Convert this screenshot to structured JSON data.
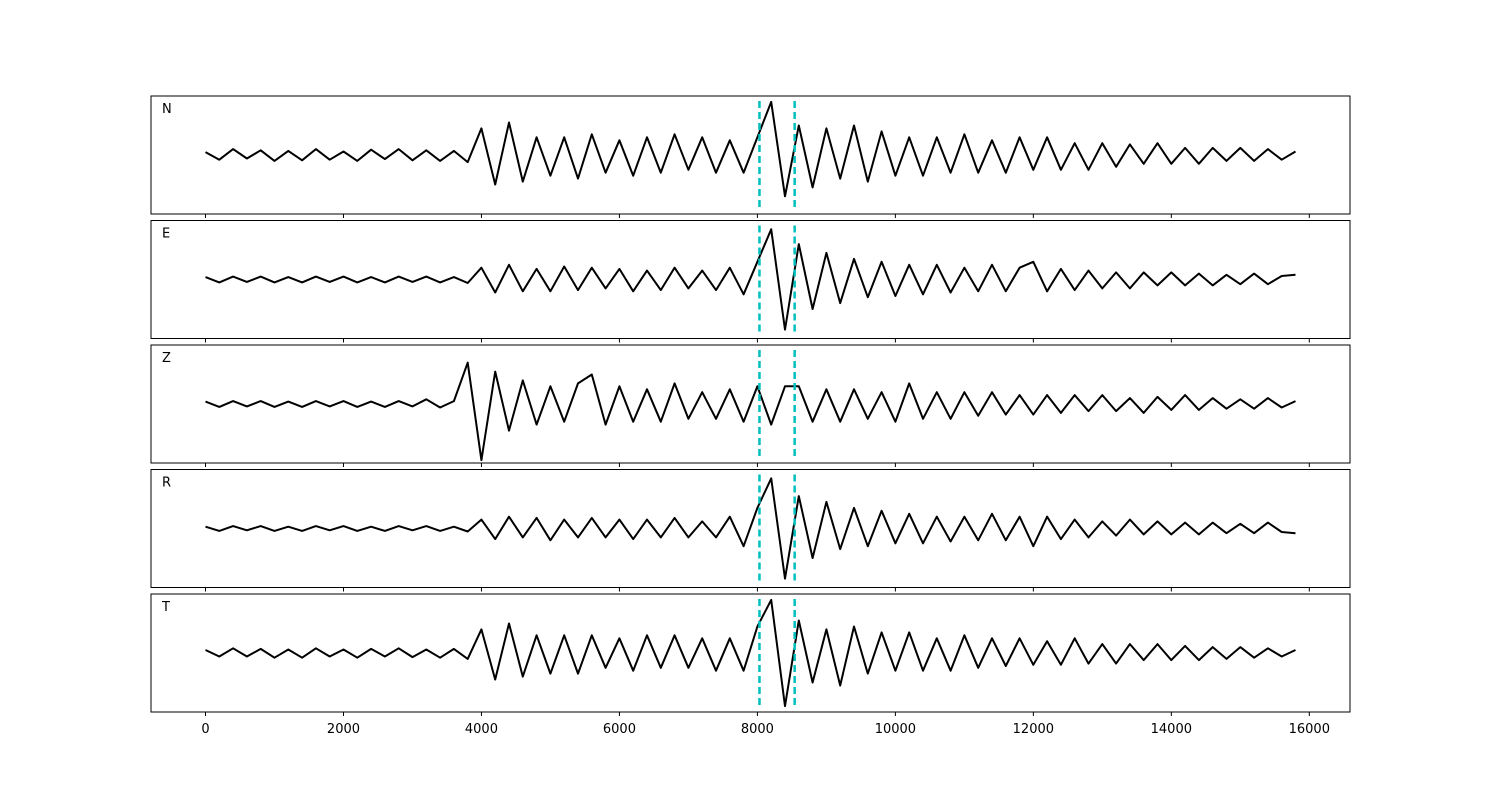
{
  "chart_data": {
    "type": "line",
    "x": [
      0,
      200,
      400,
      600,
      800,
      1000,
      1200,
      1400,
      1600,
      1800,
      2000,
      2200,
      2400,
      2600,
      2800,
      3000,
      3200,
      3400,
      3600,
      3800,
      4000,
      4200,
      4400,
      4600,
      4800,
      5000,
      5200,
      5400,
      5600,
      5800,
      6000,
      6200,
      6400,
      6600,
      6800,
      7000,
      7200,
      7400,
      7600,
      7800,
      8000,
      8200,
      8400,
      8600,
      8800,
      9000,
      9200,
      9400,
      9600,
      9800,
      10000,
      10200,
      10400,
      10600,
      10800,
      11000,
      11200,
      11400,
      11600,
      11800,
      12000,
      12200,
      12400,
      12600,
      12800,
      13000,
      13200,
      13400,
      13600,
      13800,
      14000,
      14200,
      14400,
      14600,
      14800,
      15000,
      15200,
      15400,
      15600,
      15800
    ],
    "series": [
      {
        "name": "N",
        "color": "#000000",
        "values": [
          0.05,
          -0.08,
          0.1,
          -0.06,
          0.08,
          -0.1,
          0.07,
          -0.09,
          0.1,
          -0.08,
          0.06,
          -0.1,
          0.09,
          -0.07,
          0.1,
          -0.09,
          0.08,
          -0.1,
          0.07,
          -0.12,
          0.45,
          -0.5,
          0.55,
          -0.45,
          0.3,
          -0.35,
          0.3,
          -0.4,
          0.35,
          -0.3,
          0.25,
          -0.35,
          0.3,
          -0.3,
          0.35,
          -0.25,
          0.3,
          -0.3,
          0.25,
          -0.3,
          0.3,
          0.9,
          -0.7,
          0.5,
          -0.55,
          0.45,
          -0.4,
          0.5,
          -0.45,
          0.4,
          -0.35,
          0.3,
          -0.35,
          0.3,
          -0.3,
          0.35,
          -0.3,
          0.25,
          -0.3,
          0.3,
          -0.25,
          0.3,
          -0.25,
          0.2,
          -0.25,
          0.2,
          -0.2,
          0.18,
          -0.15,
          0.2,
          -0.15,
          0.12,
          -0.15,
          0.12,
          -0.1,
          0.12,
          -0.1,
          0.1,
          -0.08,
          0.06
        ]
      },
      {
        "name": "E",
        "color": "#000000",
        "values": [
          0.04,
          -0.05,
          0.05,
          -0.04,
          0.05,
          -0.05,
          0.04,
          -0.05,
          0.05,
          -0.04,
          0.05,
          -0.05,
          0.04,
          -0.05,
          0.05,
          -0.04,
          0.05,
          -0.05,
          0.04,
          -0.06,
          0.2,
          -0.22,
          0.25,
          -0.2,
          0.18,
          -0.2,
          0.22,
          -0.18,
          0.2,
          -0.15,
          0.18,
          -0.2,
          0.15,
          -0.18,
          0.2,
          -0.15,
          0.15,
          -0.18,
          0.2,
          -0.25,
          0.3,
          0.85,
          -0.85,
          0.6,
          -0.5,
          0.45,
          -0.4,
          0.35,
          -0.3,
          0.3,
          -0.28,
          0.25,
          -0.25,
          0.25,
          -0.22,
          0.2,
          -0.2,
          0.25,
          -0.2,
          0.2,
          0.3,
          -0.2,
          0.18,
          -0.18,
          0.15,
          -0.15,
          0.12,
          -0.15,
          0.12,
          -0.1,
          0.12,
          -0.1,
          0.1,
          -0.1,
          0.08,
          -0.08,
          0.1,
          -0.08,
          0.06,
          0.08
        ]
      },
      {
        "name": "Z",
        "color": "#000000",
        "values": [
          0.04,
          -0.05,
          0.05,
          -0.04,
          0.05,
          -0.05,
          0.04,
          -0.05,
          0.05,
          -0.04,
          0.05,
          -0.05,
          0.04,
          -0.05,
          0.05,
          -0.04,
          0.08,
          -0.06,
          0.05,
          0.7,
          -0.95,
          0.55,
          -0.45,
          0.4,
          -0.35,
          0.3,
          -0.3,
          0.35,
          0.5,
          -0.35,
          0.3,
          -0.3,
          0.25,
          -0.3,
          0.35,
          -0.25,
          0.2,
          -0.25,
          0.25,
          -0.3,
          0.3,
          -0.35,
          0.3,
          0.3,
          -0.3,
          0.25,
          -0.3,
          0.25,
          -0.25,
          0.2,
          -0.3,
          0.35,
          -0.25,
          0.2,
          -0.25,
          0.2,
          -0.2,
          0.2,
          -0.18,
          0.15,
          -0.18,
          0.15,
          -0.15,
          0.15,
          -0.12,
          0.15,
          -0.12,
          0.1,
          -0.15,
          0.12,
          -0.1,
          0.15,
          -0.1,
          0.1,
          -0.08,
          0.08,
          -0.08,
          0.1,
          -0.06,
          0.05
        ]
      },
      {
        "name": "R",
        "color": "#000000",
        "values": [
          0.03,
          -0.04,
          0.04,
          -0.03,
          0.04,
          -0.04,
          0.03,
          -0.04,
          0.04,
          -0.03,
          0.04,
          -0.04,
          0.03,
          -0.04,
          0.04,
          -0.03,
          0.04,
          -0.04,
          0.03,
          -0.05,
          0.15,
          -0.18,
          0.2,
          -0.15,
          0.18,
          -0.2,
          0.15,
          -0.15,
          0.18,
          -0.15,
          0.15,
          -0.18,
          0.15,
          -0.15,
          0.18,
          -0.15,
          0.12,
          -0.15,
          0.2,
          -0.3,
          0.35,
          0.85,
          -0.85,
          0.55,
          -0.5,
          0.45,
          -0.35,
          0.35,
          -0.3,
          0.3,
          -0.25,
          0.25,
          -0.25,
          0.2,
          -0.22,
          0.2,
          -0.2,
          0.25,
          -0.2,
          0.2,
          -0.3,
          0.2,
          -0.18,
          0.15,
          -0.15,
          0.12,
          -0.12,
          0.15,
          -0.1,
          0.12,
          -0.1,
          0.1,
          -0.1,
          0.1,
          -0.08,
          0.08,
          -0.08,
          0.1,
          -0.06,
          -0.08
        ]
      },
      {
        "name": "T",
        "color": "#000000",
        "values": [
          0.05,
          -0.06,
          0.08,
          -0.06,
          0.07,
          -0.08,
          0.06,
          -0.08,
          0.08,
          -0.06,
          0.06,
          -0.08,
          0.07,
          -0.06,
          0.08,
          -0.07,
          0.06,
          -0.08,
          0.07,
          -0.1,
          0.4,
          -0.45,
          0.5,
          -0.4,
          0.3,
          -0.35,
          0.3,
          -0.35,
          0.3,
          -0.25,
          0.25,
          -0.3,
          0.3,
          -0.25,
          0.3,
          -0.25,
          0.25,
          -0.3,
          0.25,
          -0.3,
          0.45,
          0.9,
          -0.9,
          0.55,
          -0.5,
          0.4,
          -0.55,
          0.45,
          -0.35,
          0.35,
          -0.3,
          0.35,
          -0.3,
          0.25,
          -0.3,
          0.3,
          -0.25,
          0.25,
          -0.22,
          0.25,
          -0.2,
          0.2,
          -0.2,
          0.25,
          -0.18,
          0.15,
          -0.18,
          0.15,
          -0.12,
          0.15,
          -0.12,
          0.12,
          -0.12,
          0.1,
          -0.1,
          0.1,
          -0.08,
          0.08,
          -0.06,
          0.05
        ]
      }
    ],
    "vlines": [
      8030,
      8540
    ],
    "vline_color": "#00bfbf",
    "xlim": [
      -790,
      16590
    ],
    "xticks": [
      0,
      2000,
      4000,
      6000,
      8000,
      10000,
      12000,
      14000,
      16000
    ],
    "ylim": [
      -1,
      1
    ]
  }
}
